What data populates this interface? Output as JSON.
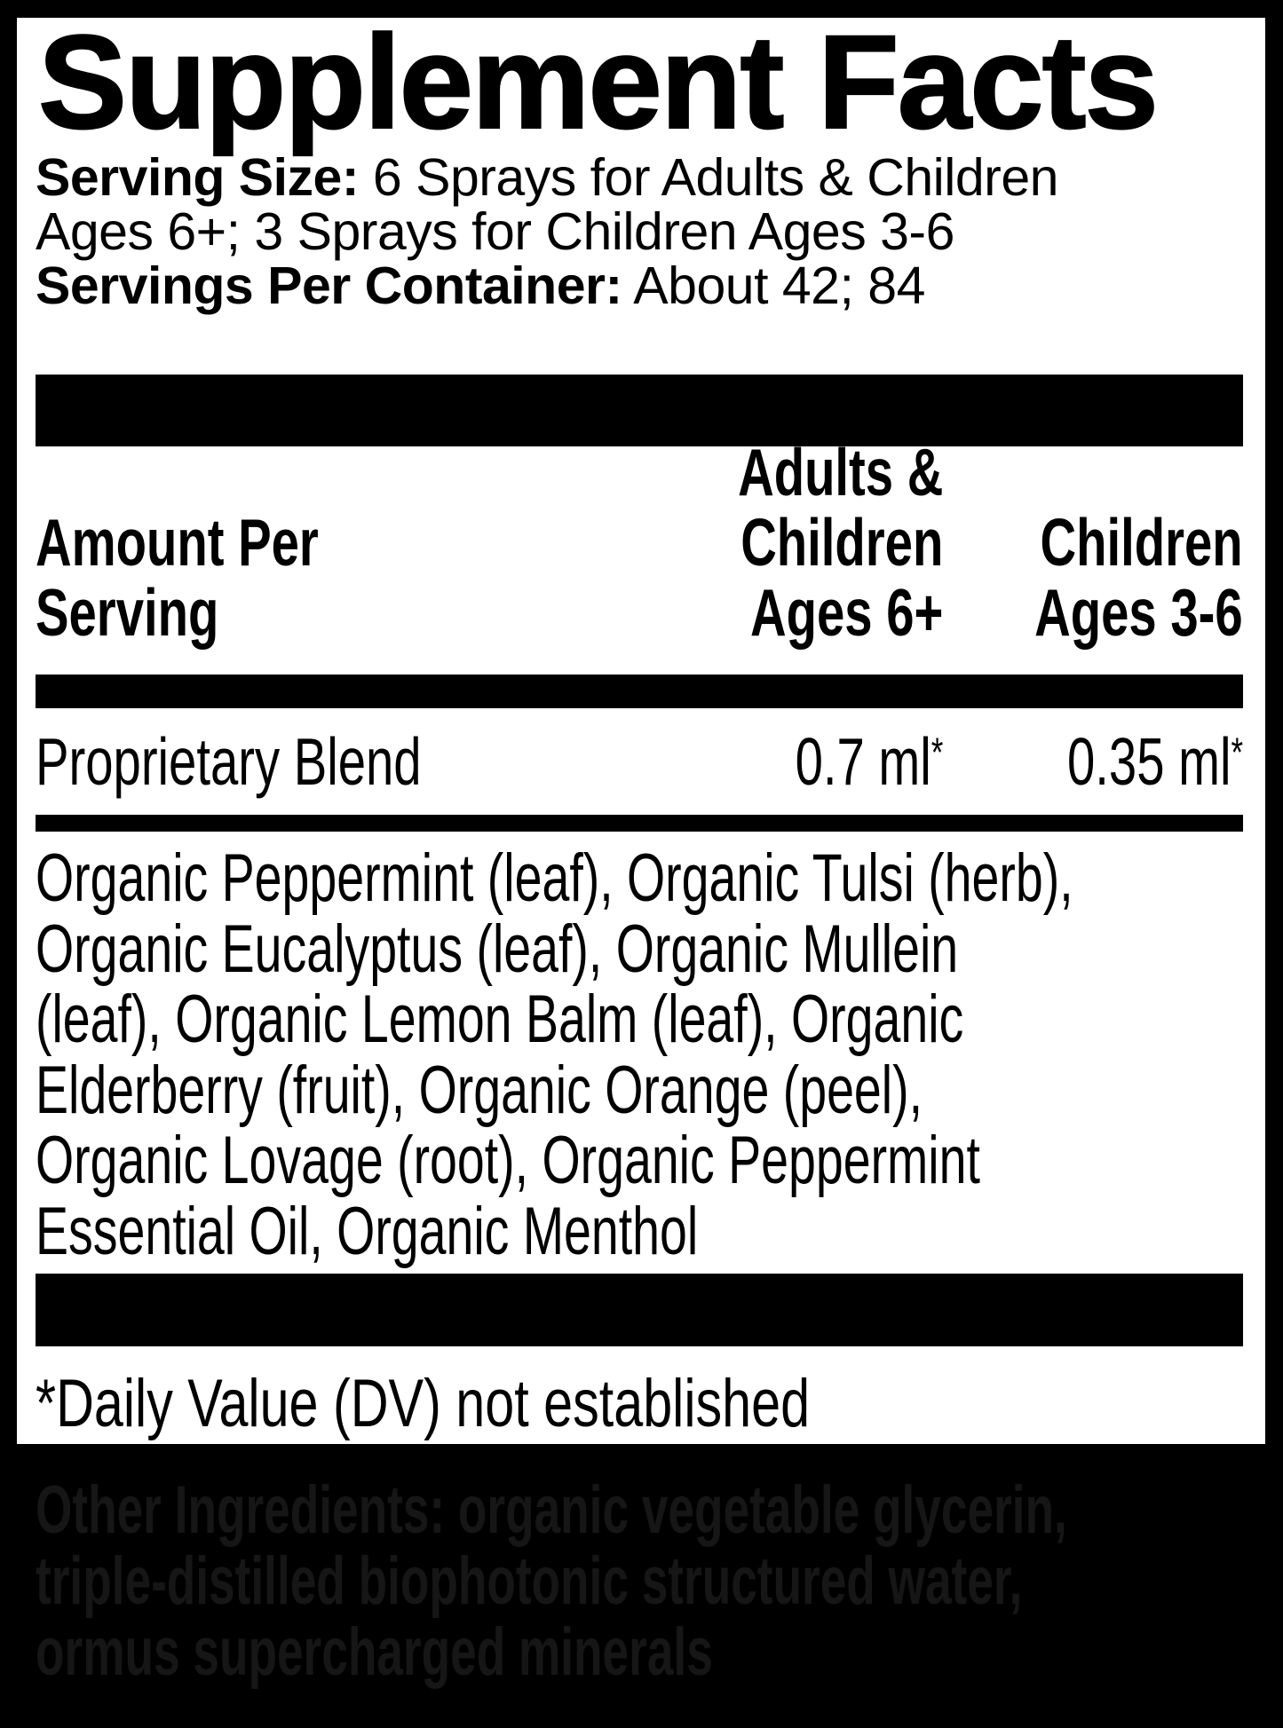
{
  "colors": {
    "page_bg": "#000000",
    "panel_bg": "#ffffff",
    "text": "#000000",
    "divider": "#000000",
    "other_ingredients_text": "#161616"
  },
  "panel": {
    "title": "Supplement Facts",
    "serving_info": {
      "serving_size_label": "Serving Size:",
      "serving_size_value_line1": " 6 Sprays for Adults & Children",
      "serving_size_value_line2": "Ages 6+; 3 Sprays for Children Ages 3-6",
      "servings_per_container_label": "Servings Per Container:",
      "servings_per_container_value": " About 42; 84"
    },
    "table": {
      "header": {
        "col1": [
          "Amount Per",
          "Serving"
        ],
        "col2": [
          "Adults &",
          "Children",
          "Ages 6+"
        ],
        "col3": [
          "Children",
          "Ages 3-6"
        ]
      },
      "row": {
        "name": "Proprietary Blend",
        "adults_amount": "0.7 ml",
        "adults_dv_note": "*",
        "children_amount": "0.35 ml",
        "children_dv_note": "*"
      },
      "blend_ingredients_lines": [
        "Organic Peppermint (leaf), Organic Tulsi (herb),",
        "Organic Eucalyptus (leaf), Organic Mullein",
        "(leaf), Organic Lemon Balm (leaf), Organic",
        "Elderberry (fruit), Organic Orange (peel),",
        "Organic Lovage (root), Organic Peppermint",
        "Essential Oil, Organic Menthol"
      ]
    },
    "footnote": "*Daily Value (DV) not established"
  },
  "other_ingredients": {
    "lines": [
      "Other Ingredients: organic vegetable glycerin,",
      "triple-distilled biophotonic structured water,",
      "ormus supercharged minerals"
    ]
  }
}
